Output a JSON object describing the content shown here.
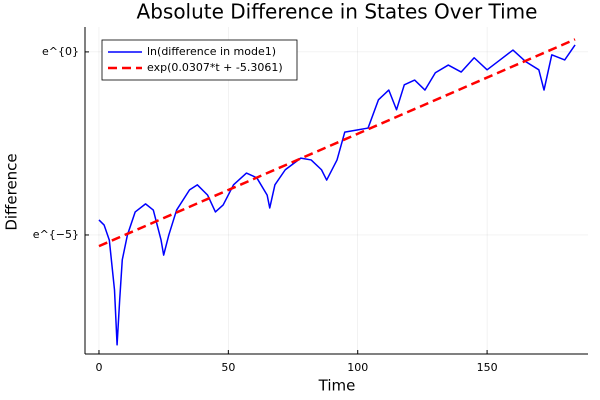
{
  "chart_data": {
    "type": "line",
    "title": "Absolute Difference in States Over Time",
    "xlabel": "Time",
    "ylabel": "Difference",
    "xlim": [
      -5.4,
      189
    ],
    "xticks": [
      0,
      50,
      100,
      150
    ],
    "ylim": [
      0.000261,
      1.974
    ],
    "yscale": "log",
    "yticks": [
      {
        "value": 1,
        "label": "e^{0}"
      },
      {
        "value": 0.006738,
        "label": "e^{−5}"
      }
    ],
    "grid": true,
    "legend": "top-left",
    "series": [
      {
        "name": "ln(difference in mode1)",
        "color": "#0000ff",
        "style": "solid",
        "x": [
          0,
          2,
          4,
          6,
          7,
          8,
          9,
          11,
          14,
          18,
          21,
          24,
          25,
          27,
          30,
          35,
          38,
          42,
          45,
          48,
          52,
          57,
          61,
          65,
          66,
          68,
          72,
          78,
          82,
          86,
          88,
          92,
          95,
          100,
          104,
          108,
          112,
          115,
          118,
          122,
          126,
          130,
          135,
          140,
          145,
          150,
          155,
          160,
          165,
          170,
          172,
          175,
          180,
          184
        ],
        "values": [
          0.01015,
          0.00883,
          0.00586,
          0.0015,
          0.000335,
          0.00114,
          0.00341,
          0.00674,
          0.01265,
          0.01576,
          0.0133,
          0.00586,
          0.00389,
          0.00674,
          0.0133,
          0.0231,
          0.0265,
          0.02,
          0.01265,
          0.0153,
          0.0265,
          0.0365,
          0.0321,
          0.02,
          0.0141,
          0.0265,
          0.04,
          0.055,
          0.0523,
          0.04,
          0.0302,
          0.0523,
          0.1119,
          0.1188,
          0.1249,
          0.27,
          0.353,
          0.206,
          0.407,
          0.463,
          0.353,
          0.566,
          0.698,
          0.577,
          0.852,
          0.613,
          0.803,
          1.051,
          0.763,
          0.613,
          0.353,
          0.923,
          0.803,
          1.209
        ]
      },
      {
        "name": "exp(0.0307*t + -5.3061)",
        "color": "#ff0000",
        "style": "dashed",
        "x": [
          0,
          184
        ],
        "values": [
          0.004963,
          1.4088
        ]
      }
    ]
  }
}
